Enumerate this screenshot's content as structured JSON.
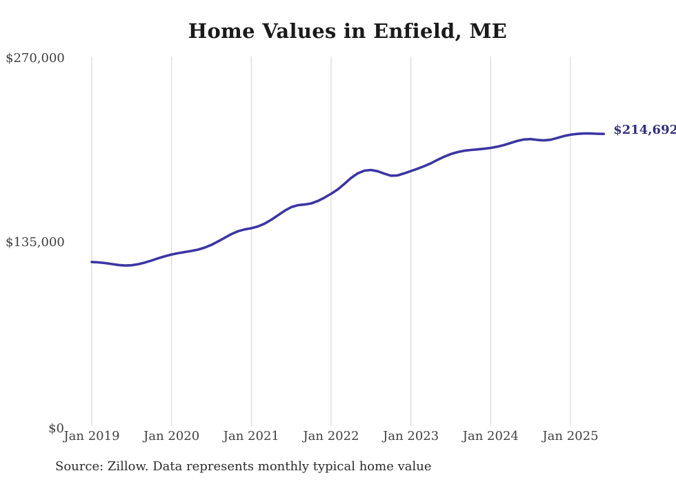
{
  "title": "Home Values in Enfield, ME",
  "end_label": "$214,692",
  "source_note": "Source: Zillow. Data represents monthly typical home value",
  "colors": {
    "line": "#3b35a2",
    "end_label": "#322d7f",
    "grid": "#cfcfcf",
    "title": "#1a1a1a",
    "axis_text": "#3f3f3f",
    "background": "#ffffff"
  },
  "chart_data": {
    "type": "line",
    "title": "Home Values in Enfield, ME",
    "xlabel": "",
    "ylabel": "",
    "ylim": [
      0,
      270000
    ],
    "grid": "vertical-only",
    "legend": "none",
    "x_tick_labels": [
      "Jan 2019",
      "Jan 2020",
      "Jan 2021",
      "Jan 2022",
      "Jan 2023",
      "Jan 2024",
      "Jan 2025"
    ],
    "y_ticks": [
      {
        "value": 0,
        "label": "$0"
      },
      {
        "value": 135000,
        "label": "$135,000"
      },
      {
        "value": 270000,
        "label": "$270,000"
      }
    ],
    "x_start_month": "Jan 2019",
    "x_end_month": "Jun 2025",
    "final_value": 214692,
    "series": [
      {
        "name": "Monthly typical home value",
        "values": [
          120600,
          120300,
          119800,
          119100,
          118400,
          118000,
          118200,
          119000,
          120200,
          121700,
          123300,
          124800,
          126100,
          127100,
          127900,
          128700,
          129700,
          131200,
          133200,
          135700,
          138400,
          141100,
          143200,
          144500,
          145400,
          146700,
          148800,
          151600,
          154900,
          158200,
          160900,
          162300,
          162800,
          163600,
          165400,
          167900,
          170700,
          173900,
          178000,
          182300,
          185700,
          187700,
          188200,
          187300,
          185500,
          184000,
          184200,
          185700,
          187400,
          189100,
          191000,
          193100,
          195600,
          197900,
          199900,
          201300,
          202300,
          202900,
          203300,
          203800,
          204400,
          205300,
          206500,
          208000,
          209500,
          210600,
          210900,
          210300,
          209900,
          210400,
          211700,
          213100,
          214100,
          214700,
          215000,
          215000,
          214800,
          214692
        ]
      }
    ]
  }
}
